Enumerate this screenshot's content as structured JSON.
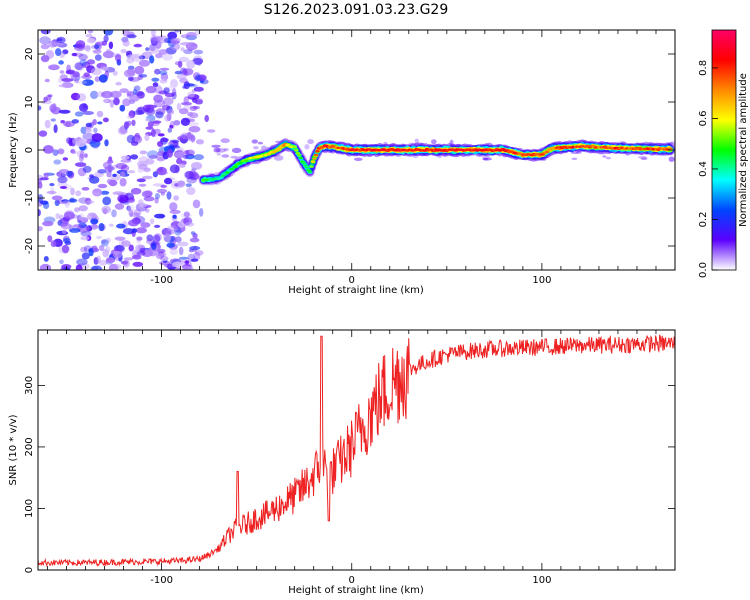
{
  "title": "S126.2023.091.03.23.G29",
  "chart_data": [
    {
      "type": "heatmap",
      "xlabel": "Height of straight line (km)",
      "ylabel": "Frequency (Hz)",
      "xlim": [
        -165,
        170
      ],
      "ylim": [
        -25,
        25
      ],
      "xticks": [
        -100,
        0,
        100
      ],
      "yticks": [
        -20,
        -10,
        0,
        10,
        20
      ],
      "colorbar": {
        "label": "Normalized spectral amplitude",
        "range": [
          0,
          0.95
        ],
        "ticks": [
          "0.0",
          "0.2",
          "0.4",
          "0.6",
          "0.8"
        ],
        "colors": [
          "#ffffff",
          "#5a00ff",
          "#0044ff",
          "#00ffff",
          "#00ff00",
          "#ffff00",
          "#ff8800",
          "#ff0000",
          "#ff0066"
        ]
      },
      "noise_region_x": [
        -165,
        -80
      ],
      "ridge": {
        "x": [
          -78,
          -70,
          -65,
          -60,
          -55,
          -50,
          -45,
          -40,
          -35,
          -30,
          -25,
          -22,
          -20,
          -17,
          -14,
          -10,
          -5,
          0,
          20,
          40,
          60,
          80,
          90,
          95,
          100,
          105,
          110,
          120,
          130,
          140,
          150,
          160,
          168
        ],
        "frequency_hz": [
          -6.2,
          -6.0,
          -4.5,
          -3.0,
          -2.0,
          -1.5,
          -1.0,
          -0.2,
          1.2,
          0.5,
          -3.0,
          -4.5,
          -2.0,
          0.5,
          0.8,
          0.7,
          0.3,
          0.0,
          0.0,
          0.0,
          0.0,
          0.0,
          -1.0,
          -1.0,
          -1.0,
          0.3,
          0.5,
          0.8,
          0.6,
          0.4,
          0.3,
          0.2,
          0.2
        ],
        "amplitude": [
          0.55,
          0.45,
          0.5,
          0.55,
          0.6,
          0.7,
          0.65,
          0.75,
          0.8,
          0.6,
          0.5,
          0.55,
          0.75,
          0.9,
          0.95,
          0.85,
          0.9,
          0.95,
          0.95,
          0.95,
          0.95,
          0.95,
          0.9,
          0.9,
          0.85,
          0.8,
          0.9,
          0.9,
          0.85,
          0.9,
          0.85,
          0.9,
          0.85
        ]
      }
    },
    {
      "type": "line",
      "xlabel": "Height of straight line (km)",
      "ylabel": "SNR (10 * v/v)",
      "xlim": [
        -165,
        170
      ],
      "ylim": [
        0,
        390
      ],
      "xticks": [
        -100,
        0,
        100
      ],
      "yticks": [
        0,
        100,
        200,
        300
      ],
      "series": [
        {
          "color": "#ee2222",
          "x": [
            -165,
            -140,
            -120,
            -100,
            -90,
            -80,
            -75,
            -70,
            -65,
            -60,
            -55,
            -50,
            -45,
            -40,
            -35,
            -30,
            -25,
            -20,
            -17,
            -15,
            -12,
            -10,
            -5,
            0,
            5,
            10,
            15,
            20,
            25,
            30,
            40,
            50,
            60,
            70,
            80,
            100,
            120,
            140,
            160,
            170
          ],
          "y": [
            12,
            12,
            13,
            14,
            15,
            18,
            25,
            35,
            55,
            70,
            75,
            85,
            90,
            100,
            110,
            120,
            135,
            155,
            165,
            175,
            150,
            160,
            180,
            200,
            230,
            255,
            280,
            300,
            315,
            325,
            340,
            350,
            355,
            358,
            360,
            362,
            365,
            366,
            368,
            368
          ],
          "spikes": [
            {
              "x": -60,
              "y": 160
            },
            {
              "x": -16,
              "y": 380
            },
            {
              "x": -12,
              "y": 80
            }
          ]
        }
      ]
    }
  ]
}
